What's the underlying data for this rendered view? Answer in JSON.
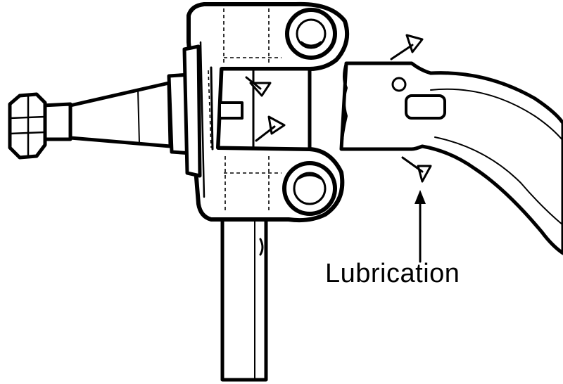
{
  "labels": {
    "lubrication": "Lubrication"
  },
  "icons": {
    "grease_point": "triangle-grease-fitting-icon",
    "arrow": "arrow-up-icon"
  },
  "colors": {
    "ink": "#000000",
    "paper": "#ffffff"
  }
}
